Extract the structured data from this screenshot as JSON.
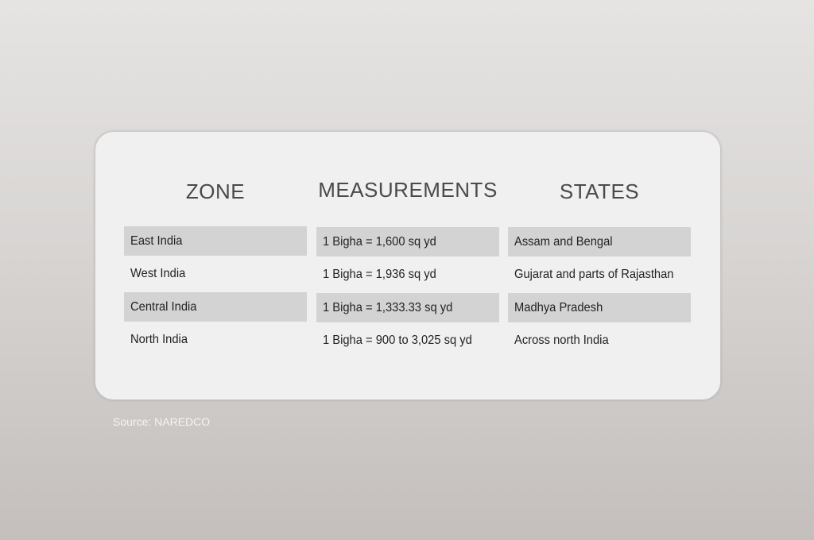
{
  "table": {
    "headers": [
      "ZONE",
      "MEASUREMENTS",
      "STATES"
    ],
    "rows": [
      [
        "East India",
        "1 Bigha = 1,600 sq yd",
        "Assam and Bengal"
      ],
      [
        "West India",
        "1 Bigha = 1,936 sq yd",
        "Gujarat and parts of Rajasthan"
      ],
      [
        "Central India",
        "1 Bigha = 1,333.33 sq yd",
        "Madhya Pradesh"
      ],
      [
        "North India",
        "1 Bigha = 900 to 3,025 sq yd",
        "Across north India"
      ]
    ]
  },
  "source": "Source: NAREDCO",
  "colors": {
    "card": "#f0f0f0",
    "row_shade": "#d3d3d3",
    "header_text": "#4a4a4c"
  }
}
